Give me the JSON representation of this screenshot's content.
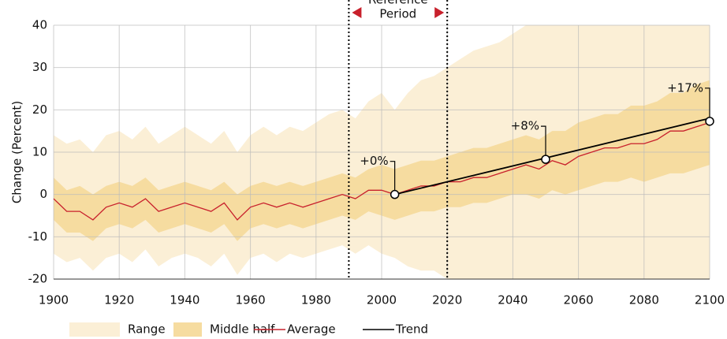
{
  "chart_data": {
    "type": "band-line",
    "y_label": "Change (Percent)",
    "xlim": [
      1900,
      2100
    ],
    "xticks": [
      1900,
      1920,
      1940,
      1960,
      1980,
      2000,
      2020,
      2040,
      2060,
      2080,
      2100
    ],
    "ylim": [
      -20,
      40
    ],
    "yticks": [
      -20,
      -10,
      0,
      10,
      20,
      30,
      40
    ],
    "grid": true,
    "x": [
      1900,
      1904,
      1908,
      1912,
      1916,
      1920,
      1924,
      1928,
      1932,
      1936,
      1940,
      1944,
      1948,
      1952,
      1956,
      1960,
      1964,
      1968,
      1972,
      1976,
      1980,
      1984,
      1988,
      1992,
      1996,
      2000,
      2004,
      2008,
      2012,
      2016,
      2020,
      2024,
      2028,
      2032,
      2036,
      2040,
      2044,
      2048,
      2052,
      2056,
      2060,
      2064,
      2068,
      2072,
      2076,
      2080,
      2084,
      2088,
      2092,
      2096,
      2100
    ],
    "series": [
      {
        "name": "Range",
        "kind": "band",
        "color": "#fbefd6",
        "low": [
          -14,
          -16,
          -15,
          -18,
          -15,
          -14,
          -16,
          -13,
          -17,
          -15,
          -14,
          -15,
          -17,
          -14,
          -19,
          -15,
          -14,
          -16,
          -14,
          -15,
          -14,
          -13,
          -12,
          -14,
          -12,
          -14,
          -15,
          -17,
          -18,
          -18,
          -20,
          -20,
          -20,
          -20,
          -20,
          -20,
          -20,
          -20,
          -20,
          -20,
          -20,
          -20,
          -20,
          -20,
          -20,
          -20,
          -20,
          -20,
          -20,
          -20,
          -20
        ],
        "high": [
          14,
          12,
          13,
          10,
          14,
          15,
          13,
          16,
          12,
          14,
          16,
          14,
          12,
          15,
          10,
          14,
          16,
          14,
          16,
          15,
          17,
          19,
          20,
          18,
          22,
          24,
          20,
          24,
          27,
          28,
          30,
          32,
          34,
          35,
          36,
          38,
          40,
          40,
          40,
          40,
          40,
          40,
          40,
          40,
          40,
          40,
          40,
          40,
          40,
          40,
          40
        ]
      },
      {
        "name": "Middle half",
        "kind": "band",
        "color": "#f6dca0",
        "low": [
          -6,
          -9,
          -9,
          -11,
          -8,
          -7,
          -8,
          -6,
          -9,
          -8,
          -7,
          -8,
          -9,
          -7,
          -11,
          -8,
          -7,
          -8,
          -7,
          -8,
          -7,
          -6,
          -5,
          -6,
          -4,
          -5,
          -6,
          -5,
          -4,
          -4,
          -3,
          -3,
          -2,
          -2,
          -1,
          0,
          0,
          -1,
          1,
          0,
          1,
          2,
          3,
          3,
          4,
          3,
          4,
          5,
          5,
          6,
          7
        ],
        "high": [
          4,
          1,
          2,
          0,
          2,
          3,
          2,
          4,
          1,
          2,
          3,
          2,
          1,
          3,
          0,
          2,
          3,
          2,
          3,
          2,
          3,
          4,
          5,
          4,
          6,
          7,
          6,
          7,
          8,
          8,
          9,
          10,
          11,
          11,
          12,
          13,
          14,
          13,
          15,
          15,
          17,
          18,
          19,
          19,
          21,
          21,
          22,
          24,
          24,
          26,
          27
        ]
      },
      {
        "name": "Average",
        "kind": "line",
        "color": "#c8202c",
        "values": [
          -1,
          -4,
          -4,
          -6,
          -3,
          -2,
          -3,
          -1,
          -4,
          -3,
          -2,
          -3,
          -4,
          -2,
          -6,
          -3,
          -2,
          -3,
          -2,
          -3,
          -2,
          -1,
          0,
          -1,
          1,
          1,
          0,
          1,
          2,
          2,
          3,
          3,
          4,
          4,
          5,
          6,
          7,
          6,
          8,
          7,
          9,
          10,
          11,
          11,
          12,
          12,
          13,
          15,
          15,
          16,
          17
        ]
      },
      {
        "name": "Trend",
        "kind": "line",
        "color": "#000000",
        "x": [
          2004,
          2100
        ],
        "values": [
          0,
          18
        ]
      }
    ],
    "annotations": [
      {
        "x": 2004,
        "y": 0,
        "label": "+0%"
      },
      {
        "x": 2050,
        "y": 8.3,
        "label": "+8%"
      },
      {
        "x": 2100,
        "y": 17.3,
        "label": "+17%"
      }
    ],
    "reference_period": {
      "start": 1990,
      "end": 2020,
      "label_lines": [
        "Reference",
        "Period"
      ],
      "arrow_color": "#c8202c"
    }
  }
}
